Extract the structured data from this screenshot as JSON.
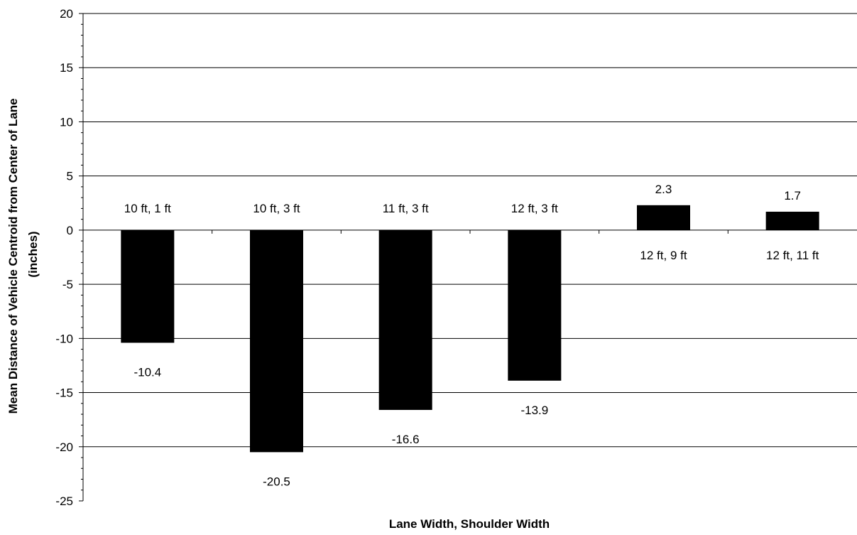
{
  "chart_data": {
    "type": "bar",
    "categories": [
      "10 ft, 1 ft",
      "10 ft, 3 ft",
      "11 ft, 3 ft",
      "12 ft, 3 ft",
      "12 ft, 9 ft",
      "12 ft, 11 ft"
    ],
    "values": [
      -10.4,
      -20.5,
      -16.6,
      -13.9,
      2.3,
      1.7
    ],
    "data_labels": [
      "-10.4",
      "-20.5",
      "-16.6",
      "-13.9",
      "2.3",
      "1.7"
    ],
    "xlabel": "Lane Width, Shoulder Width",
    "ylabel_lines": [
      "Mean Distance of Vehicle Centroid from Center of Lane",
      "(inches)"
    ],
    "ylim": [
      -25,
      20
    ],
    "yticks": [
      20,
      15,
      10,
      5,
      0,
      -5,
      -10,
      -15,
      -20,
      -25
    ],
    "grid": true,
    "legend": "none",
    "bar_color": "#000000"
  }
}
